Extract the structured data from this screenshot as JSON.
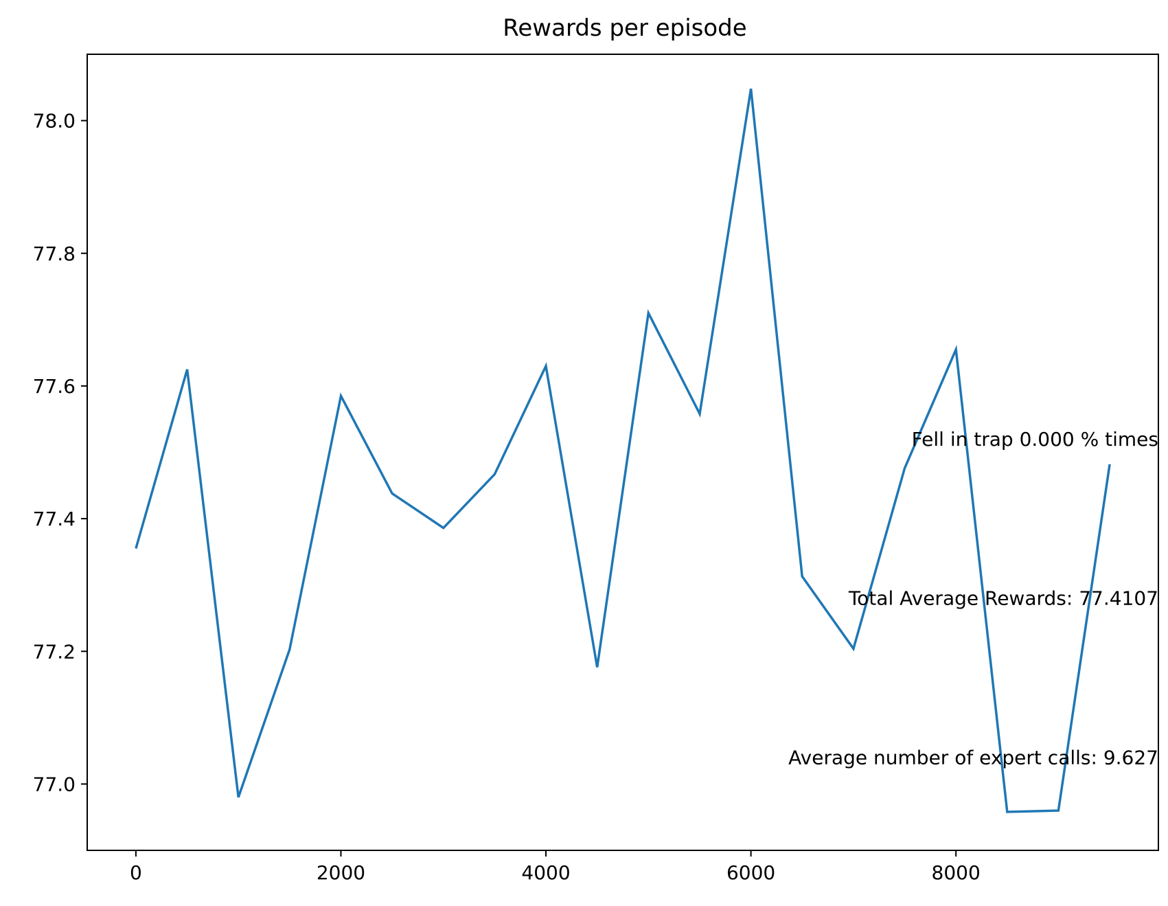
{
  "chart_data": {
    "type": "line",
    "title": "Rewards per episode",
    "xlabel": "",
    "ylabel": "",
    "xlim": [
      -475,
      9975
    ],
    "ylim": [
      76.9,
      78.1
    ],
    "grid": false,
    "line_color": "#1f77b4",
    "xticks": [
      0,
      2000,
      4000,
      6000,
      8000
    ],
    "yticks": [
      77.0,
      77.2,
      77.4,
      77.6,
      77.8,
      78.0
    ],
    "xtick_labels": [
      "0",
      "2000",
      "4000",
      "6000",
      "8000"
    ],
    "ytick_labels": [
      "77.0",
      "77.2",
      "77.4",
      "77.6",
      "77.8",
      "78.0"
    ],
    "series": [
      {
        "x": [
          0,
          500,
          1000,
          1500,
          2000,
          2500,
          3000,
          3500,
          4000,
          4500,
          5000,
          5500,
          6000,
          6500,
          7000,
          7500,
          8000,
          8500,
          9000,
          9500
        ],
        "values": [
          77.355,
          77.625,
          76.98,
          77.203,
          77.585,
          77.438,
          77.386,
          77.467,
          77.63,
          77.176,
          77.71,
          77.558,
          78.048,
          77.313,
          77.204,
          77.476,
          77.655,
          76.958,
          76.96,
          77.482
        ]
      }
    ],
    "annotations": [
      {
        "text": "Fell in trap 0.000 % times",
        "x": 9975,
        "y": 77.51
      },
      {
        "text": "Total Average Rewards: 77.4107",
        "x": 9975,
        "y": 77.27
      },
      {
        "text": "Average number of expert calls: 9.627",
        "x": 9975,
        "y": 77.03
      }
    ]
  }
}
